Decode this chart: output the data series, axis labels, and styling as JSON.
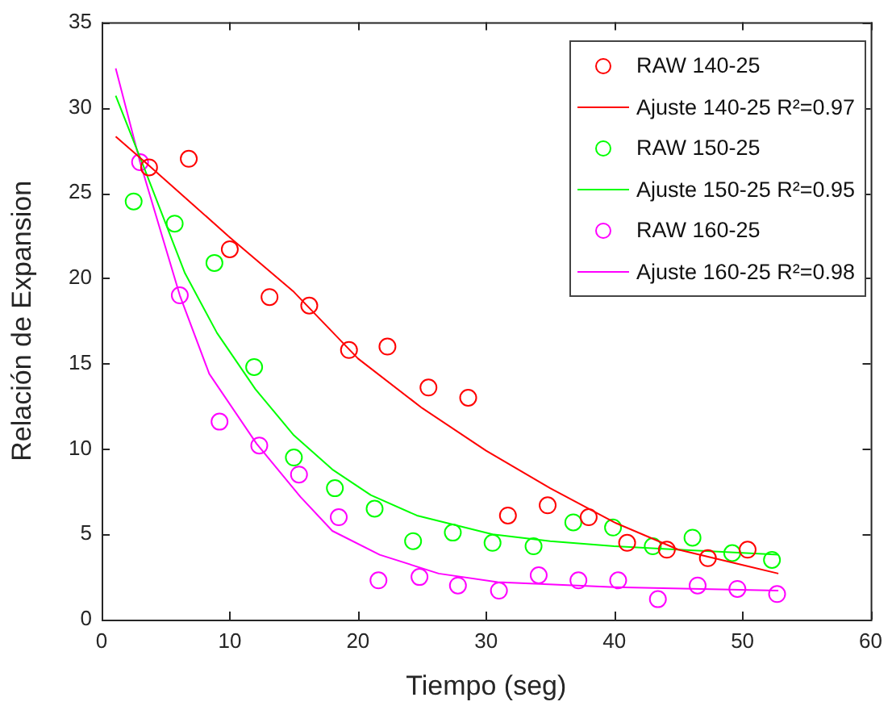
{
  "chart_data": {
    "type": "scatter",
    "xlabel": "Tiempo (seg)",
    "ylabel": "Relación de Expansion",
    "xlim": [
      0,
      60
    ],
    "xticks": [
      0,
      10,
      20,
      30,
      40,
      50,
      60
    ],
    "ylim": [
      0,
      35
    ],
    "yticks": [
      0,
      5,
      10,
      15,
      20,
      25,
      30,
      35
    ],
    "grid": false,
    "legend": "top right",
    "series": [
      {
        "name": "RAW 140-25",
        "type": "scatter",
        "marker": "circle",
        "color": "#ff0000",
        "x": [
          3.7,
          6.8,
          10.0,
          13.1,
          16.2,
          19.3,
          22.3,
          25.5,
          28.6,
          31.7,
          34.8,
          38.0,
          41.0,
          44.1,
          47.3,
          50.4
        ],
        "values": [
          26.5,
          27.0,
          21.7,
          18.9,
          18.4,
          15.8,
          16.0,
          13.6,
          13.0,
          6.1,
          6.7,
          6.0,
          4.5,
          4.1,
          3.6,
          4.1
        ]
      },
      {
        "name": "Ajuste 140-25 R²=0.97",
        "type": "line",
        "marker": "none",
        "color": "#ff0000",
        "x": [
          1.1,
          3.7,
          10,
          15,
          20,
          25,
          30,
          35,
          40,
          45,
          50,
          52.8
        ],
        "values": [
          28.3,
          26.6,
          22.4,
          19.2,
          15.3,
          12.4,
          9.9,
          7.7,
          5.7,
          4.1,
          3.2,
          2.7
        ]
      },
      {
        "name": "RAW 150-25",
        "type": "scatter",
        "marker": "circle",
        "color": "#00ff00",
        "x": [
          2.5,
          5.7,
          8.8,
          11.9,
          15.0,
          18.2,
          21.3,
          24.3,
          27.4,
          30.5,
          33.7,
          36.8,
          39.9,
          43.0,
          46.1,
          49.2,
          52.3
        ],
        "values": [
          24.5,
          23.2,
          20.9,
          14.8,
          9.5,
          7.7,
          6.5,
          4.6,
          5.1,
          4.5,
          4.3,
          5.7,
          5.4,
          4.3,
          4.8,
          3.9,
          3.5
        ]
      },
      {
        "name": "Ajuste 150-25 R²=0.95",
        "type": "line",
        "marker": "none",
        "color": "#00ff00",
        "x": [
          1.1,
          3.3,
          6.5,
          9,
          12,
          15,
          18,
          21,
          24.6,
          30.5,
          35,
          40,
          45,
          52.8
        ],
        "values": [
          30.7,
          26.5,
          20.3,
          16.8,
          13.5,
          10.8,
          8.8,
          7.3,
          6.1,
          5.0,
          4.6,
          4.3,
          4.1,
          3.8
        ]
      },
      {
        "name": "RAW 160-25",
        "type": "scatter",
        "marker": "circle",
        "color": "#ff00ff",
        "x": [
          3.0,
          6.1,
          9.2,
          12.3,
          15.4,
          18.5,
          21.6,
          24.8,
          27.8,
          31.0,
          34.1,
          37.2,
          40.3,
          43.4,
          46.5,
          49.6,
          52.7
        ],
        "values": [
          26.8,
          19.0,
          11.6,
          10.2,
          8.5,
          6.0,
          2.3,
          2.5,
          2.0,
          1.7,
          2.6,
          2.3,
          2.3,
          1.2,
          2.0,
          1.8,
          1.5
        ]
      },
      {
        "name": "Ajuste 160-25 R²=0.98",
        "type": "line",
        "marker": "none",
        "color": "#ff00ff",
        "x": [
          1.1,
          3.0,
          6.1,
          8.4,
          12.1,
          15.5,
          18,
          21.7,
          26.3,
          30.9,
          40,
          52.8
        ],
        "values": [
          32.3,
          26.8,
          19.0,
          14.4,
          10.3,
          7.2,
          5.2,
          3.8,
          2.7,
          2.2,
          1.9,
          1.7
        ]
      }
    ]
  }
}
